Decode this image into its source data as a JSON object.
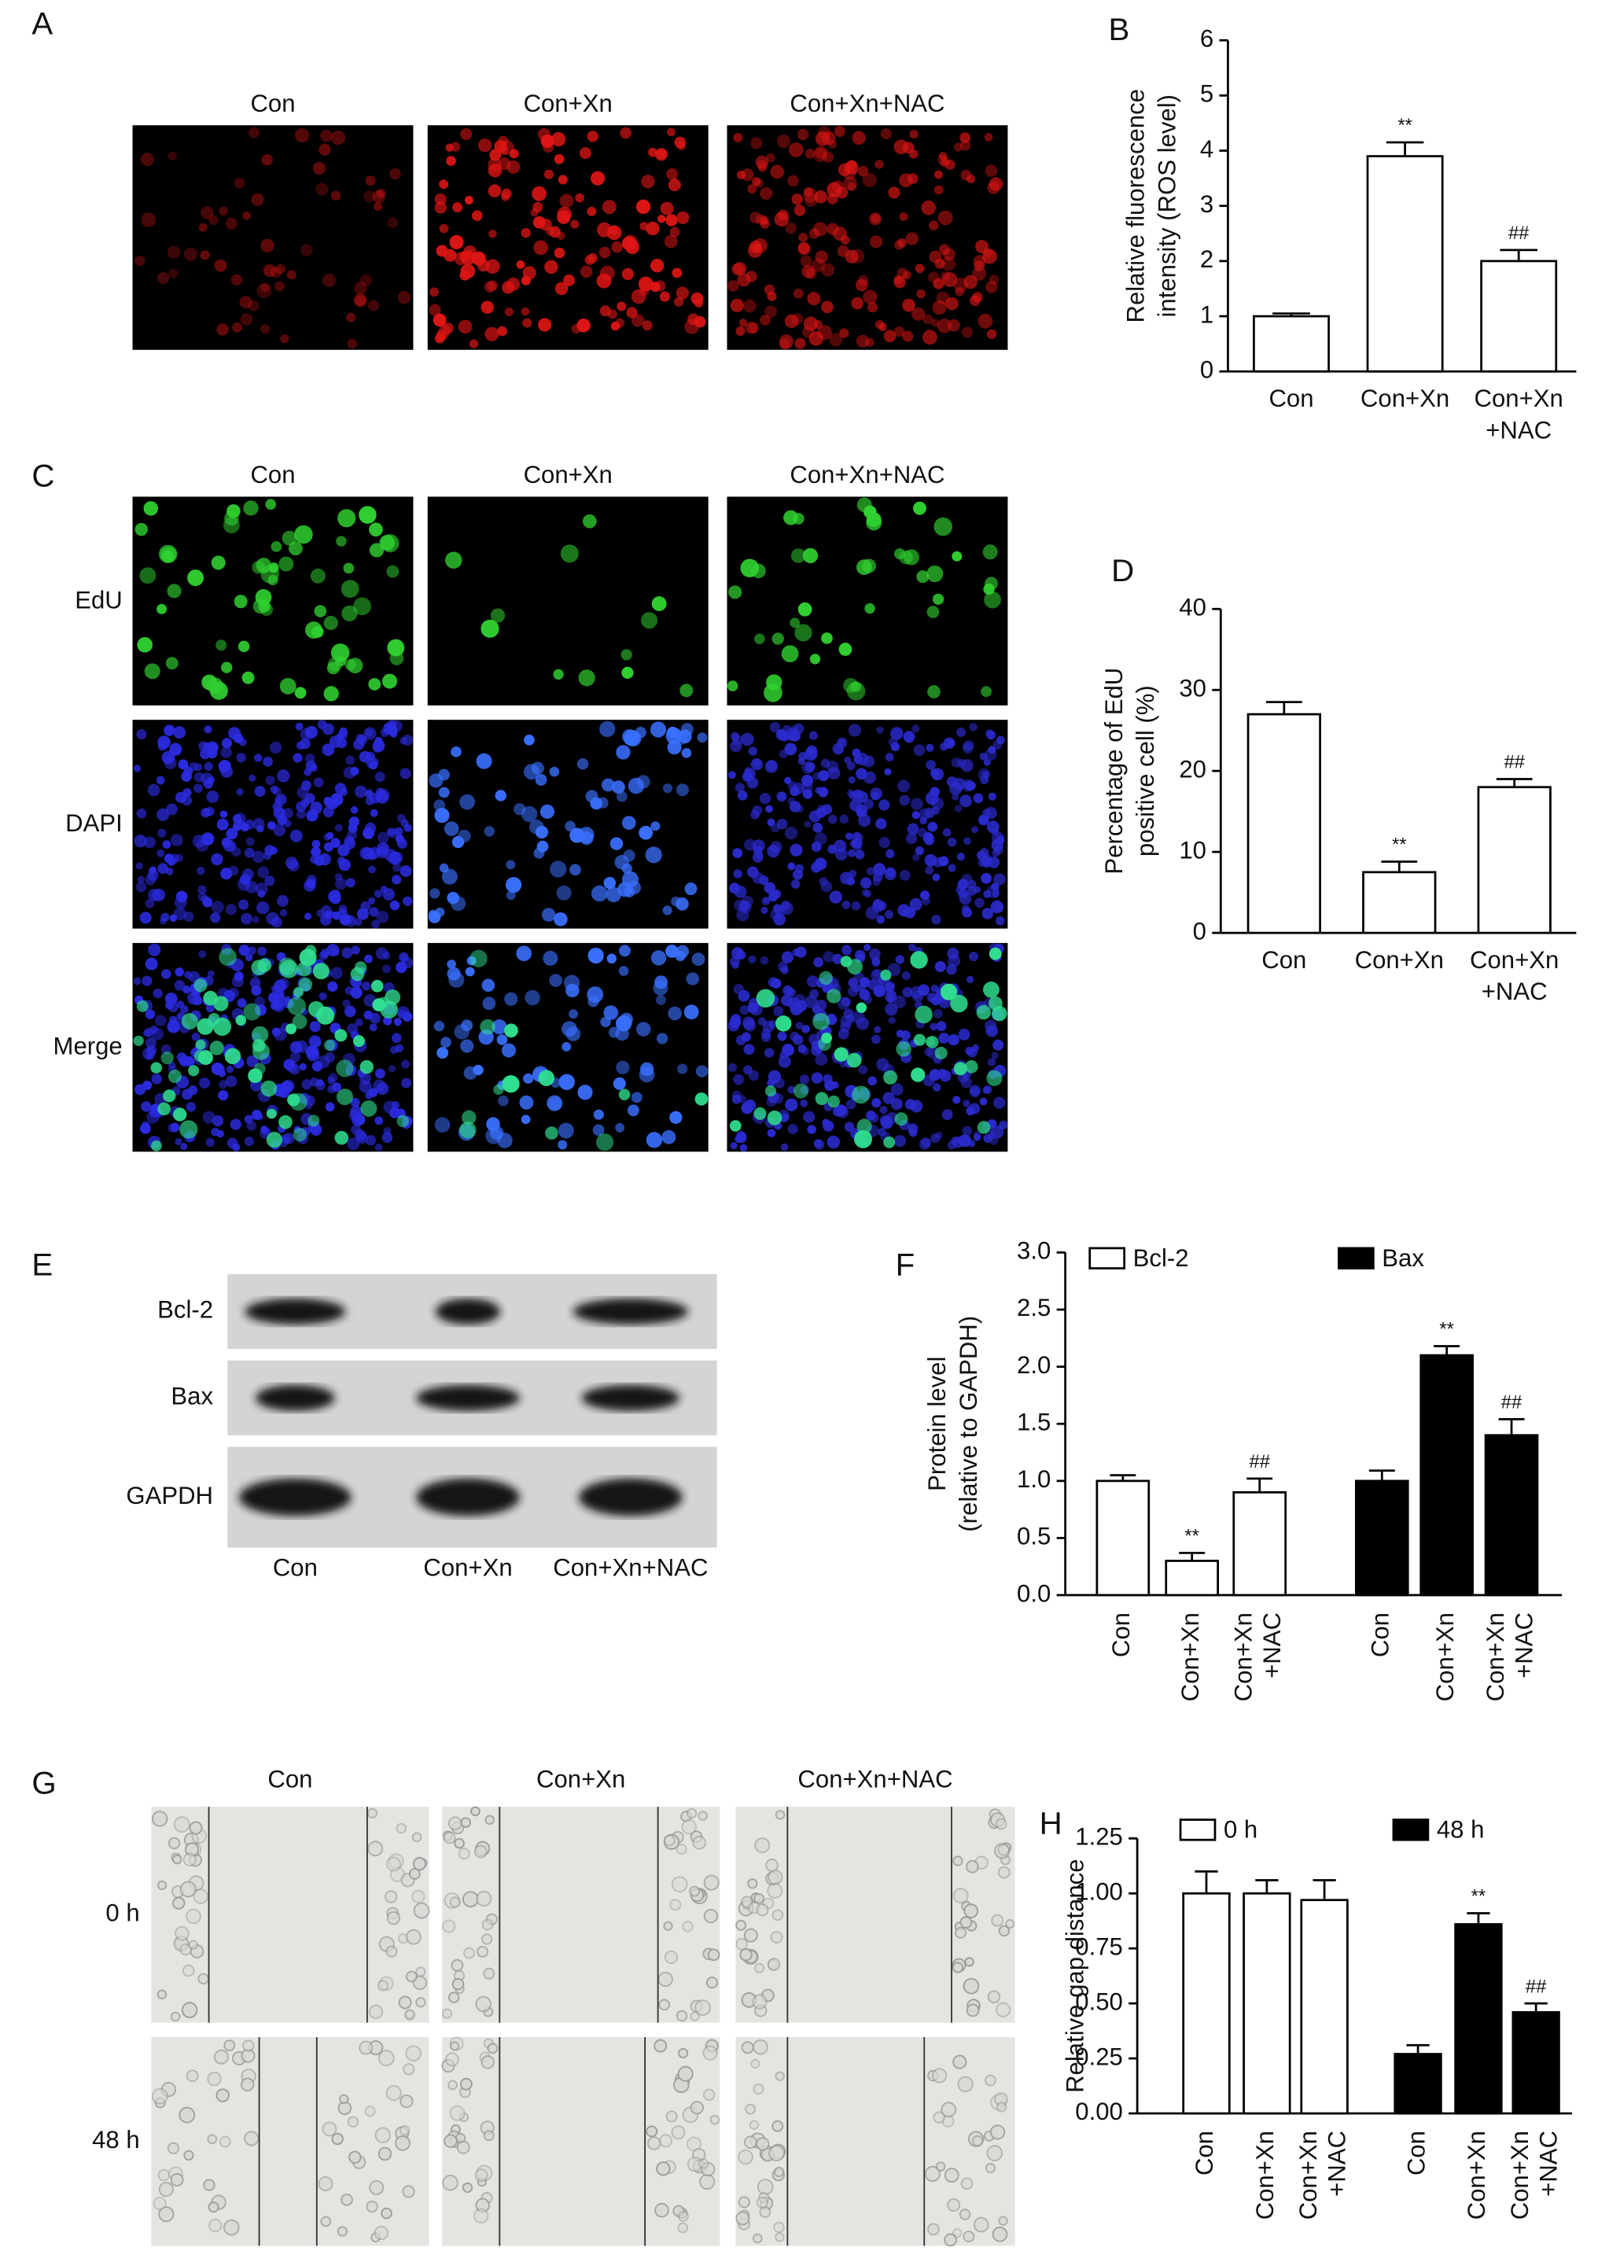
{
  "panel_letters": [
    "A",
    "B",
    "C",
    "D",
    "E",
    "F",
    "G",
    "H"
  ],
  "panel_a": {
    "columns": [
      "Con",
      "Con+Xn",
      "Con+Xn+NAC"
    ]
  },
  "panel_c": {
    "columns": [
      "Con",
      "Con+Xn",
      "Con+Xn+NAC"
    ],
    "rows": [
      "EdU",
      "DAPI",
      "Merge"
    ]
  },
  "panel_e": {
    "rows": [
      "Bcl-2",
      "Bax",
      "GAPDH"
    ],
    "columns": [
      "Con",
      "Con+Xn",
      "Con+Xn+NAC"
    ]
  },
  "panel_g": {
    "columns": [
      "Con",
      "Con+Xn",
      "Con+Xn+NAC"
    ],
    "rows": [
      "0 h",
      "48 h"
    ]
  },
  "chart_data": [
    {
      "type": "bar",
      "y_label": [
        "Relative fluorescence",
        "intensity (ROS level)"
      ],
      "categories": [
        [
          "Con"
        ],
        [
          "Con+Xn"
        ],
        [
          "Con+Xn",
          "+NAC"
        ]
      ],
      "values": [
        1.0,
        3.9,
        2.0
      ],
      "errors": [
        0.05,
        0.25,
        0.2
      ],
      "annotations": [
        null,
        "**",
        "##"
      ],
      "color": "#ffffff",
      "ylim": [
        0,
        6
      ],
      "yticks": [
        0,
        1,
        2,
        3,
        4,
        5,
        6
      ]
    },
    {
      "type": "bar",
      "y_label": [
        "Percentage of EdU",
        "positive cell (%)"
      ],
      "categories": [
        [
          "Con"
        ],
        [
          "Con+Xn"
        ],
        [
          "Con+Xn",
          "+NAC"
        ]
      ],
      "values": [
        27,
        7.5,
        18
      ],
      "errors": [
        1.5,
        1.3,
        1.0
      ],
      "annotations": [
        null,
        "**",
        "##"
      ],
      "color": "#ffffff",
      "ylim": [
        0,
        40
      ],
      "yticks": [
        0,
        10,
        20,
        30,
        40
      ]
    },
    {
      "type": "bar",
      "y_label": [
        "Protein level",
        "(relative to GAPDH)"
      ],
      "categories": [
        [
          "Con"
        ],
        [
          "Con+Xn"
        ],
        [
          "Con+Xn",
          "+NAC"
        ]
      ],
      "series": [
        {
          "name": "Bcl-2",
          "color": "#ffffff",
          "values": [
            1.0,
            0.3,
            0.9
          ],
          "errors": [
            0.05,
            0.07,
            0.12
          ],
          "annotations": [
            null,
            "**",
            "##"
          ]
        },
        {
          "name": "Bax",
          "color": "#000000",
          "values": [
            1.0,
            2.1,
            1.4
          ],
          "errors": [
            0.09,
            0.08,
            0.14
          ],
          "annotations": [
            null,
            "**",
            "##"
          ]
        }
      ],
      "ylim": [
        0,
        3
      ],
      "yticks": [
        {
          "value": 0,
          "label": "0.0"
        },
        {
          "value": 0.5,
          "label": "0.5"
        },
        {
          "value": 1,
          "label": "1.0"
        },
        {
          "value": 1.5,
          "label": "1.5"
        },
        {
          "value": 2,
          "label": "2.0"
        },
        {
          "value": 2.5,
          "label": "2.5"
        },
        {
          "value": 3,
          "label": "3.0"
        }
      ]
    },
    {
      "type": "bar",
      "y_label": [
        "Relative gap distance"
      ],
      "categories": [
        [
          "Con"
        ],
        [
          "Con+Xn"
        ],
        [
          "Con+Xn",
          "+NAC"
        ]
      ],
      "series": [
        {
          "name": "0 h",
          "color": "#ffffff",
          "values": [
            1.0,
            1.0,
            0.97
          ],
          "errors": [
            0.1,
            0.06,
            0.09
          ],
          "annotations": [
            null,
            null,
            null
          ]
        },
        {
          "name": "48 h",
          "color": "#000000",
          "values": [
            0.27,
            0.86,
            0.46
          ],
          "errors": [
            0.04,
            0.05,
            0.04
          ],
          "annotations": [
            null,
            "**",
            "##"
          ]
        }
      ],
      "ylim": [
        0,
        1.25
      ],
      "yticks": [
        {
          "value": 0,
          "label": "0.00"
        },
        {
          "value": 0.25,
          "label": "0.25"
        },
        {
          "value": 0.5,
          "label": "0.50"
        },
        {
          "value": 0.75,
          "label": "0.75"
        },
        {
          "value": 1,
          "label": "1.00"
        },
        {
          "value": 1.25,
          "label": "1.25"
        }
      ]
    }
  ]
}
